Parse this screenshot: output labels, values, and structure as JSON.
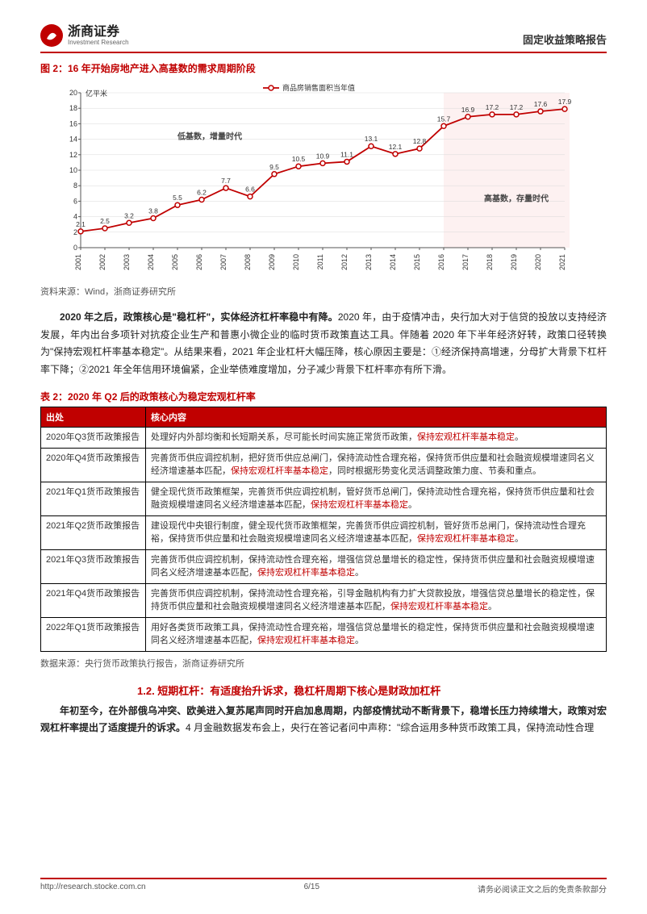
{
  "header": {
    "company_cn": "浙商证券",
    "company_en": "Investment Research",
    "report_type": "固定收益策略报告"
  },
  "figure": {
    "title": "图 2：16 年开始房地产进入高基数的需求周期阶段",
    "y_unit": "亿平米",
    "legend": "商品房销售面积当年值",
    "annot_left": "低基数，增量时代",
    "annot_right": "高基数，存量时代",
    "source": "资料来源：Wind，浙商证券研究所",
    "x_labels": [
      "2001",
      "2002",
      "2003",
      "2004",
      "2005",
      "2006",
      "2007",
      "2008",
      "2009",
      "2010",
      "2011",
      "2012",
      "2013",
      "2014",
      "2015",
      "2016",
      "2017",
      "2018",
      "2019",
      "2020",
      "2021"
    ],
    "values": [
      2.1,
      2.5,
      3.2,
      3.8,
      5.5,
      6.2,
      7.7,
      6.6,
      9.5,
      10.5,
      10.9,
      11.1,
      13.1,
      12.1,
      12.8,
      15.7,
      16.9,
      17.2,
      17.2,
      17.6,
      17.9
    ],
    "ylim": [
      0,
      20
    ],
    "ytick_step": 2,
    "line_color": "#c00000",
    "marker_color": "#c00000",
    "grid_color": "#d9d9d9",
    "shade_color": "#fce8e8",
    "axis_color": "#555555",
    "label_fontsize": 9
  },
  "paragraph1": {
    "lead": "2020 年之后，政策核心是\"稳杠杆\"，实体经济杠杆率稳中有降。",
    "rest": "2020 年，由于疫情冲击，央行加大对于信贷的投放以支持经济发展，年内出台多项针对抗疫企业生产和普惠小微企业的临时货币政策直达工具。伴随着 2020 年下半年经济好转，政策口径转换为\"保持宏观杠杆率基本稳定\"。从结果来看，2021 年企业杠杆大幅压降，核心原因主要是：①经济保持高增速，分母扩大背景下杠杆率下降；②2021 年全年信用环境偏紧，企业举债难度增加，分子减少背景下杠杆率亦有所下滑。"
  },
  "table": {
    "title": "表 2：2020 年 Q2 后的政策核心为稳定宏观杠杆率",
    "col1": "出处",
    "col2": "核心内容",
    "rows": [
      {
        "src": "2020年Q3货币政策报告",
        "pre": "处理好内外部均衡和长短期关系，尽可能长时间实施正常货币政策，",
        "hl": "保持宏观杠杆率基本稳定",
        "suf": "。"
      },
      {
        "src": "2020年Q4货币政策报告",
        "pre": "完善货币供应调控机制，把好货币供应总闸门，保持流动性合理充裕，保持货币供应量和社会融资规模增速同名义经济增速基本匹配，",
        "hl": "保持宏观杠杆率基本稳定",
        "suf": "，同时根据形势变化灵活调整政策力度、节奏和重点。"
      },
      {
        "src": "2021年Q1货币政策报告",
        "pre": "健全现代货币政策框架，完善货币供应调控机制，管好货币总闸门，保持流动性合理充裕，保持货币供应量和社会融资规模增速同名义经济增速基本匹配，",
        "hl": "保持宏观杠杆率基本稳定",
        "suf": "。"
      },
      {
        "src": "2021年Q2货币政策报告",
        "pre": "建设现代中央银行制度，健全现代货币政策框架，完善货币供应调控机制，管好货币总闸门，保持流动性合理充裕，保持货币供应量和社会融资规模增速同名义经济增速基本匹配，",
        "hl": "保持宏观杠杆率基本稳定",
        "suf": "。"
      },
      {
        "src": "2021年Q3货币政策报告",
        "pre": "完善货币供应调控机制，保持流动性合理充裕，增强信贷总量增长的稳定性，保持货币供应量和社会融资规模增速同名义经济增速基本匹配，",
        "hl": "保持宏观杠杆率基本稳定",
        "suf": "。"
      },
      {
        "src": "2021年Q4货币政策报告",
        "pre": "完善货币供应调控机制，保持流动性合理充裕，引导金融机构有力扩大贷款投放，增强信贷总量增长的稳定性，保持货币供应量和社会融资规模增速同名义经济增速基本匹配，",
        "hl": "保持宏观杠杆率基本稳定",
        "suf": "。"
      },
      {
        "src": "2022年Q1货币政策报告",
        "pre": "用好各类货币政策工具，保持流动性合理充裕，增强信贷总量增长的稳定性，保持货币供应量和社会融资规模增速同名义经济增速基本匹配，",
        "hl": "保持宏观杠杆率基本稳定",
        "suf": "。"
      }
    ],
    "source": "数据来源：央行货币政策执行报告，浙商证券研究所"
  },
  "section": {
    "heading": "1.2. 短期杠杆：有适度抬升诉求，稳杠杆周期下核心是财政加杠杆",
    "para_lead": "年初至今，在外部俄乌冲突、欧美进入复苏尾声同时开启加息周期，内部疫情扰动不断背景下，稳增长压力持续增大，政策对宏观杠杆率提出了适度提升的诉求。",
    "para_rest": "4 月金融数据发布会上，央行在答记者问中声称：\"综合运用多种货币政策工具，保持流动性合理"
  },
  "footer": {
    "url": "http://research.stocke.com.cn",
    "page": "6/15",
    "disclaimer": "请务必阅读正文之后的免责条款部分"
  }
}
